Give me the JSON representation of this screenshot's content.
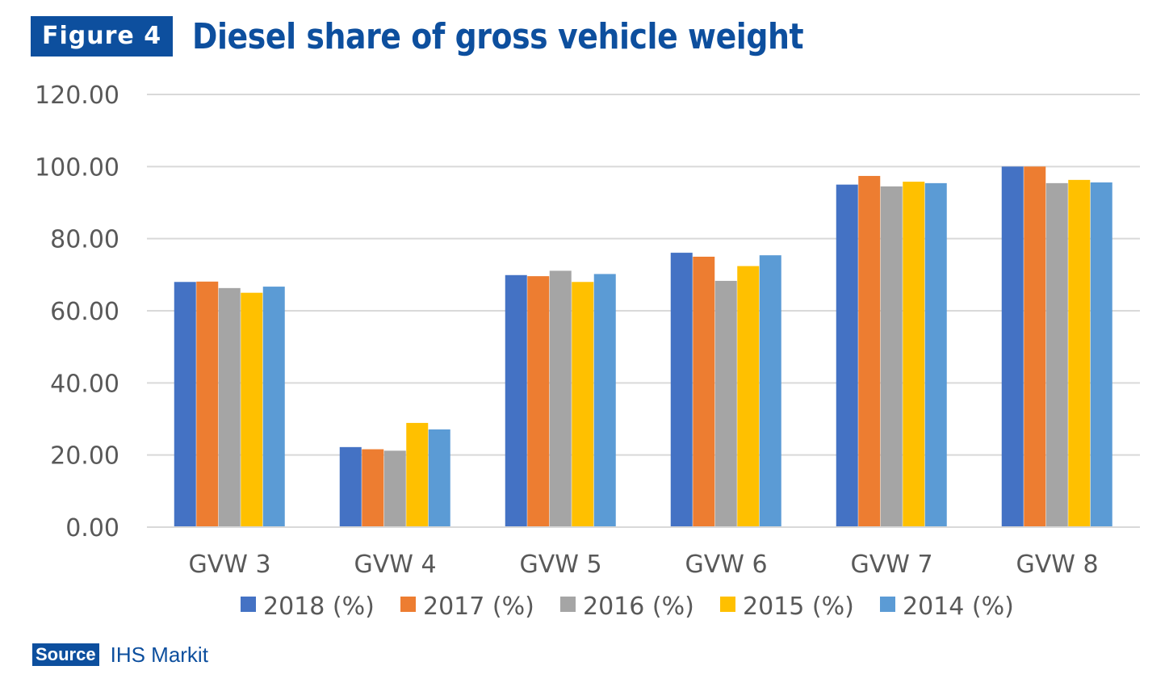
{
  "header": {
    "figure_label": "Figure 4",
    "title": "Diesel share of gross vehicle weight"
  },
  "footer": {
    "source_label": "Source",
    "source_text": "IHS Markit"
  },
  "colors": {
    "brand": "#0d4f9e",
    "grid": "#d9d9d9",
    "tick_text": "#595959"
  },
  "chart_data": {
    "type": "bar",
    "title": "",
    "xlabel": "",
    "ylabel": "",
    "categories": [
      "GVW 3",
      "GVW 4",
      "GVW 5",
      "GVW 6",
      "GVW 7",
      "GVW 8"
    ],
    "ylim": [
      0,
      120
    ],
    "yticks": [
      "0.00",
      "20.00",
      "40.00",
      "60.00",
      "80.00",
      "100.00",
      "120.00"
    ],
    "grid": true,
    "legend_position": "bottom",
    "series": [
      {
        "name": "2018 (%)",
        "color": "#4472c4",
        "values": [
          68.0,
          22.2,
          69.9,
          76.1,
          95.0,
          100.0
        ]
      },
      {
        "name": "2017 (%)",
        "color": "#ed7d31",
        "values": [
          68.1,
          21.6,
          69.6,
          75.0,
          97.4,
          100.0
        ]
      },
      {
        "name": "2016 (%)",
        "color": "#a5a5a5",
        "values": [
          66.3,
          21.2,
          71.1,
          68.3,
          94.5,
          95.4
        ]
      },
      {
        "name": "2015 (%)",
        "color": "#ffc000",
        "values": [
          65.0,
          28.9,
          68.0,
          72.4,
          95.8,
          96.3
        ]
      },
      {
        "name": "2014 (%)",
        "color": "#5b9bd5",
        "values": [
          66.7,
          27.1,
          70.2,
          75.4,
          95.4,
          95.6
        ]
      }
    ]
  }
}
